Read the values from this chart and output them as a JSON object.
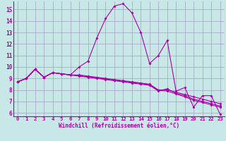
{
  "xlabel": "Windchill (Refroidissement éolien,°C)",
  "xlim": [
    -0.5,
    23.5
  ],
  "ylim": [
    5.7,
    15.7
  ],
  "yticks": [
    6,
    7,
    8,
    9,
    10,
    11,
    12,
    13,
    14,
    15
  ],
  "xticks": [
    0,
    1,
    2,
    3,
    4,
    5,
    6,
    7,
    8,
    9,
    10,
    11,
    12,
    13,
    14,
    15,
    16,
    17,
    18,
    19,
    20,
    21,
    22,
    23
  ],
  "bg_color": "#c8e8e8",
  "grid_color": "#a0a0c0",
  "line_color": "#aa00aa",
  "line1": [
    8.7,
    9.0,
    9.8,
    9.1,
    9.5,
    9.4,
    9.3,
    10.0,
    10.5,
    12.5,
    14.2,
    15.3,
    15.5,
    14.7,
    13.0,
    10.3,
    11.0,
    12.3,
    7.9,
    8.2,
    6.5,
    7.5,
    7.5,
    5.9
  ],
  "line2": [
    8.7,
    9.0,
    9.8,
    9.1,
    9.5,
    9.4,
    9.3,
    9.3,
    9.2,
    9.1,
    9.0,
    8.9,
    8.8,
    8.7,
    8.6,
    8.5,
    8.0,
    8.0,
    7.8,
    7.6,
    7.4,
    7.2,
    7.0,
    6.8
  ],
  "line3": [
    8.7,
    9.0,
    9.8,
    9.1,
    9.5,
    9.4,
    9.3,
    9.25,
    9.15,
    9.05,
    8.95,
    8.85,
    8.75,
    8.65,
    8.55,
    8.45,
    7.95,
    7.9,
    7.65,
    7.4,
    7.1,
    6.9,
    6.7,
    6.5
  ],
  "line4": [
    8.7,
    9.0,
    9.8,
    9.1,
    9.5,
    9.4,
    9.3,
    9.2,
    9.1,
    9.0,
    8.9,
    8.8,
    8.7,
    8.6,
    8.5,
    8.4,
    7.9,
    8.1,
    7.7,
    7.5,
    7.2,
    7.0,
    6.8,
    6.6
  ]
}
